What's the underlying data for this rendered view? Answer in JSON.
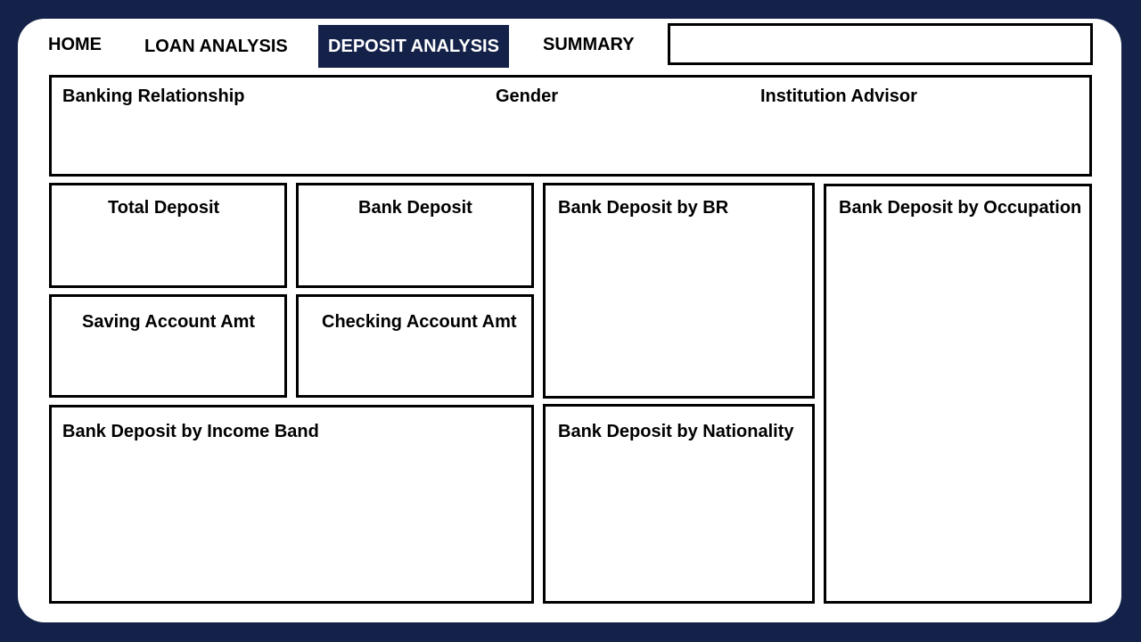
{
  "nav": {
    "home": "HOME",
    "loan_analysis": "LOAN ANALYSIS",
    "deposit_analysis": "DEPOSIT ANALYSIS",
    "summary": "SUMMARY"
  },
  "search": {
    "value": ""
  },
  "filters": {
    "banking_relationship": "Banking Relationship",
    "gender": "Gender",
    "institution_advisor": "Institution Advisor"
  },
  "cards": {
    "total_deposit": "Total Deposit",
    "bank_deposit": "Bank Deposit",
    "saving_account_amt": "Saving Account Amt",
    "checking_account_amt": "Checking Account Amt"
  },
  "charts": {
    "by_br": "Bank Deposit by BR",
    "by_occupation": "Bank Deposit by Occupation",
    "by_income_band": "Bank Deposit by Income Band",
    "by_nationality": "Bank Deposit by Nationality"
  },
  "colors": {
    "background": "#14224a",
    "active_tab": "#14224a",
    "canvas": "#ffffff"
  }
}
